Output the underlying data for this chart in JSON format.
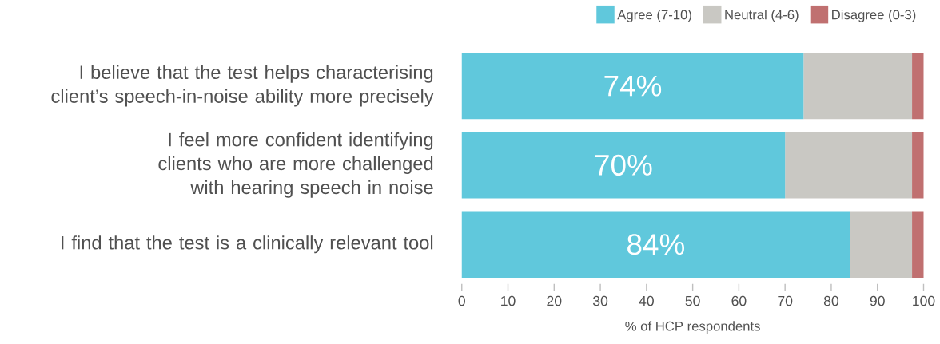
{
  "chart_data": {
    "type": "bar",
    "orientation": "horizontal",
    "stacked": true,
    "categories": [
      "I believe that the test helps characterising client’s speech-in-noise ability more precisely",
      "I feel more confident identifying clients who are more challenged with hearing speech in noise",
      "I find that the test is a clinically relevant tool"
    ],
    "series": [
      {
        "name": "Agree (7-10)",
        "color": "#60c8dc",
        "values": [
          74,
          70,
          84
        ],
        "value_labels": [
          "74%",
          "70%",
          "84%"
        ]
      },
      {
        "name": "Neutral  (4-6)",
        "color": "#c9c8c3",
        "values": [
          23.5,
          27.5,
          13.5
        ]
      },
      {
        "name": "Disagree (0-3)",
        "color": "#c07070",
        "values": [
          2.5,
          2.5,
          2.5
        ]
      }
    ],
    "xlabel": "% of HCP respondents",
    "xlim": [
      0,
      100
    ],
    "xticks": [
      0,
      10,
      20,
      30,
      40,
      50,
      60,
      70,
      80,
      90,
      100
    ],
    "grid": false,
    "legend": "top right"
  }
}
